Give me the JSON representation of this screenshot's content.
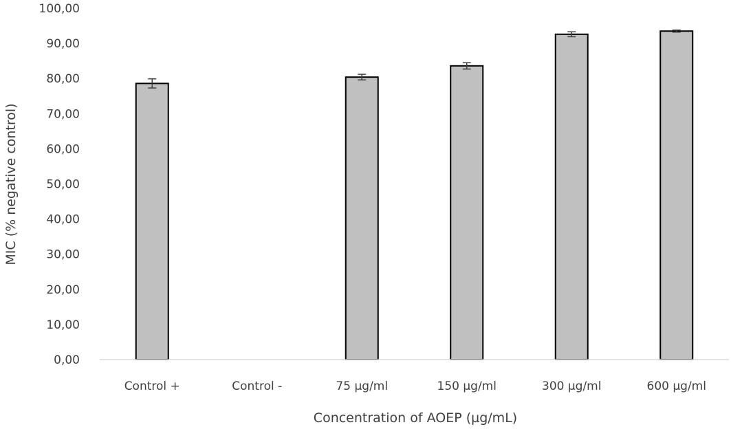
{
  "chart_data": {
    "type": "bar",
    "categories": [
      "Control +",
      "Control -",
      "75 µg/ml",
      "150 µg/ml",
      "300 µg/ml",
      "600 µg/ml"
    ],
    "values": [
      78.6,
      0,
      80.4,
      83.6,
      92.6,
      93.5
    ],
    "errors": [
      1.3,
      0,
      0.8,
      0.9,
      0.7,
      0.3
    ],
    "ytick_labels": [
      "0,00",
      "10,00",
      "20,00",
      "30,00",
      "40,00",
      "50,00",
      "60,00",
      "70,00",
      "80,00",
      "90,00",
      "100,00"
    ],
    "xlabel": "Concentration of AOEP (µg/mL)",
    "ylabel": "MIC (% negative control)",
    "ylim": [
      0,
      100
    ],
    "grid": false,
    "bar_color": "#c0c0c0",
    "bar_edge_color": "#000000"
  }
}
